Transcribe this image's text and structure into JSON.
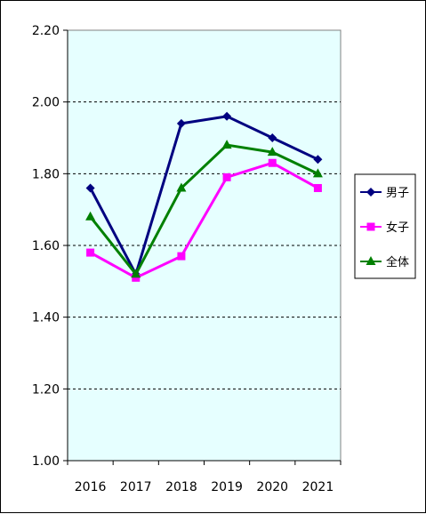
{
  "chart_data": {
    "type": "line",
    "title": "",
    "xlabel": "",
    "ylabel": "",
    "categories": [
      "2016",
      "2017",
      "2018",
      "2019",
      "2020",
      "2021"
    ],
    "ylim": [
      1.0,
      2.2
    ],
    "yticks": [
      "1.00",
      "1.20",
      "1.40",
      "1.60",
      "1.80",
      "2.00",
      "2.20"
    ],
    "ytick_values": [
      1.0,
      1.2,
      1.4,
      1.6,
      1.8,
      2.0,
      2.2
    ],
    "grid": "horizontal dashed",
    "legend_position": "right",
    "plot_background": "#e6ffff",
    "series": [
      {
        "name": "男子",
        "color": "#000080",
        "marker": "diamond",
        "values": [
          1.76,
          1.52,
          1.94,
          1.96,
          1.9,
          1.84
        ]
      },
      {
        "name": "女子",
        "color": "#ff00ff",
        "marker": "square",
        "values": [
          1.58,
          1.51,
          1.57,
          1.79,
          1.83,
          1.76
        ]
      },
      {
        "name": "全体",
        "color": "#008000",
        "marker": "triangle",
        "values": [
          1.68,
          1.52,
          1.76,
          1.88,
          1.86,
          1.8
        ]
      }
    ]
  }
}
